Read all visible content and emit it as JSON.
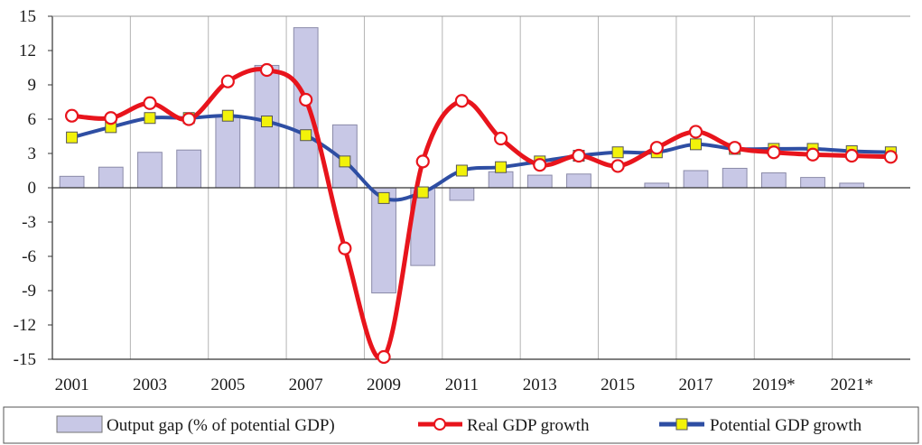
{
  "chart_data": {
    "type": "bar",
    "x_tick_labels": [
      "2001",
      "2003",
      "2005",
      "2007",
      "2009",
      "2011",
      "2013",
      "2015",
      "2017",
      "2019*",
      "2021*"
    ],
    "years": [
      2001,
      2002,
      2003,
      2004,
      2005,
      2006,
      2007,
      2008,
      2009,
      2010,
      2011,
      2012,
      2013,
      2014,
      2015,
      2016,
      2017,
      2018,
      2019,
      2020,
      2021,
      2022
    ],
    "ylim": [
      -15,
      15
    ],
    "y_ticks": [
      15,
      12,
      9,
      6,
      3,
      0,
      -3,
      -6,
      -9,
      -12,
      -15
    ],
    "grid": "vertical",
    "legend_position": "bottom",
    "series": [
      {
        "name": "Output gap (% of potential GDP)",
        "kind": "bar",
        "color": "#c8c8e6",
        "values": [
          1.0,
          1.8,
          3.1,
          3.3,
          6.3,
          10.7,
          14.0,
          5.5,
          -9.2,
          -6.8,
          -1.1,
          1.4,
          1.1,
          1.2,
          0.0,
          0.4,
          1.5,
          1.7,
          1.3,
          0.9,
          0.4,
          0.0
        ]
      },
      {
        "name": "Real GDP growth",
        "kind": "line",
        "color": "#e8141c",
        "marker": "circle",
        "values": [
          6.3,
          6.1,
          7.4,
          6.0,
          9.3,
          10.3,
          7.7,
          -5.3,
          -14.8,
          2.3,
          7.6,
          4.3,
          2.0,
          2.8,
          1.9,
          3.5,
          4.9,
          3.5,
          3.1,
          2.9,
          2.8,
          2.7
        ]
      },
      {
        "name": "Potential GDP growth",
        "kind": "line",
        "color": "#2e4ea3",
        "marker": "square",
        "marker_color": "#f2f20a",
        "values": [
          4.4,
          5.3,
          6.1,
          6.1,
          6.3,
          5.8,
          4.6,
          2.3,
          -0.9,
          -0.4,
          1.5,
          1.8,
          2.3,
          2.8,
          3.1,
          3.1,
          3.8,
          3.4,
          3.4,
          3.4,
          3.2,
          3.1
        ]
      }
    ]
  }
}
